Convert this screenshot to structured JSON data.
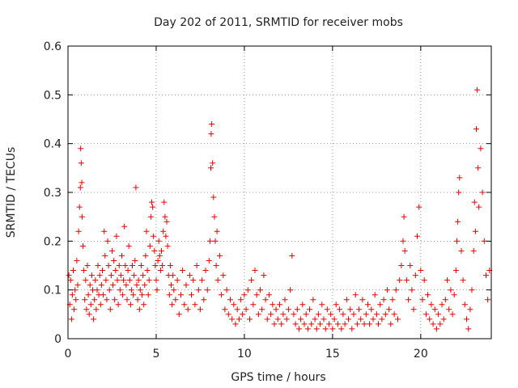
{
  "colors": {
    "series": "#ee0000",
    "frame": "#000000",
    "grid": "#9a9a9a"
  },
  "chart_data": {
    "type": "scatter",
    "title": "Day 202 of 2011, SRMTID for receiver mobs",
    "xlabel": "GPS time / hours",
    "ylabel": "SRMTID / TECUs",
    "xlim": [
      0,
      24
    ],
    "ylim": [
      0,
      0.6
    ],
    "xticks": [
      0,
      5,
      10,
      15,
      20
    ],
    "xtick_labels": [
      "0",
      "5",
      "10",
      "15",
      "20"
    ],
    "yticks": [
      0,
      0.1,
      0.2,
      0.3,
      0.4,
      0.5,
      0.6
    ],
    "ytick_labels": [
      "0",
      "0.1",
      "0.2",
      "0.3",
      "0.4",
      "0.5",
      "0.6"
    ],
    "grid": true,
    "marker": "plus",
    "series": [
      {
        "name": "SRMTID",
        "points": [
          [
            0.05,
            0.13
          ],
          [
            0.1,
            0.07
          ],
          [
            0.15,
            0.12
          ],
          [
            0.2,
            0.04
          ],
          [
            0.25,
            0.09
          ],
          [
            0.3,
            0.14
          ],
          [
            0.35,
            0.06
          ],
          [
            0.4,
            0.1
          ],
          [
            0.45,
            0.08
          ],
          [
            0.5,
            0.16
          ],
          [
            0.55,
            0.11
          ],
          [
            0.6,
            0.22
          ],
          [
            0.65,
            0.27
          ],
          [
            0.7,
            0.31
          ],
          [
            0.72,
            0.39
          ],
          [
            0.75,
            0.36
          ],
          [
            0.78,
            0.32
          ],
          [
            0.8,
            0.25
          ],
          [
            0.85,
            0.19
          ],
          [
            0.9,
            0.14
          ],
          [
            0.95,
            0.08
          ],
          [
            1.0,
            0.12
          ],
          [
            1.05,
            0.06
          ],
          [
            1.1,
            0.15
          ],
          [
            1.15,
            0.09
          ],
          [
            1.2,
            0.05
          ],
          [
            1.25,
            0.11
          ],
          [
            1.3,
            0.07
          ],
          [
            1.35,
            0.13
          ],
          [
            1.4,
            0.1
          ],
          [
            1.45,
            0.04
          ],
          [
            1.5,
            0.08
          ],
          [
            1.55,
            0.12
          ],
          [
            1.6,
            0.06
          ],
          [
            1.65,
            0.1
          ],
          [
            1.7,
            0.15
          ],
          [
            1.75,
            0.09
          ],
          [
            1.8,
            0.13
          ],
          [
            1.85,
            0.07
          ],
          [
            1.9,
            0.11
          ],
          [
            1.95,
            0.14
          ],
          [
            2.0,
            0.09
          ],
          [
            2.05,
            0.22
          ],
          [
            2.1,
            0.17
          ],
          [
            2.15,
            0.12
          ],
          [
            2.2,
            0.08
          ],
          [
            2.25,
            0.2
          ],
          [
            2.3,
            0.15
          ],
          [
            2.35,
            0.1
          ],
          [
            2.4,
            0.06
          ],
          [
            2.45,
            0.13
          ],
          [
            2.5,
            0.18
          ],
          [
            2.55,
            0.11
          ],
          [
            2.6,
            0.16
          ],
          [
            2.65,
            0.08
          ],
          [
            2.7,
            0.14
          ],
          [
            2.75,
            0.21
          ],
          [
            2.8,
            0.12
          ],
          [
            2.85,
            0.07
          ],
          [
            2.9,
            0.15
          ],
          [
            2.95,
            0.1
          ],
          [
            3.0,
            0.13
          ],
          [
            3.05,
            0.17
          ],
          [
            3.1,
            0.09
          ],
          [
            3.15,
            0.12
          ],
          [
            3.2,
            0.23
          ],
          [
            3.25,
            0.15
          ],
          [
            3.3,
            0.11
          ],
          [
            3.35,
            0.08
          ],
          [
            3.4,
            0.14
          ],
          [
            3.45,
            0.19
          ],
          [
            3.5,
            0.12
          ],
          [
            3.55,
            0.07
          ],
          [
            3.6,
            0.1
          ],
          [
            3.65,
            0.15
          ],
          [
            3.7,
            0.09
          ],
          [
            3.75,
            0.13
          ],
          [
            3.8,
            0.16
          ],
          [
            3.85,
            0.31
          ],
          [
            3.9,
            0.11
          ],
          [
            3.95,
            0.08
          ],
          [
            4.0,
            0.12
          ],
          [
            4.05,
            0.06
          ],
          [
            4.1,
            0.1
          ],
          [
            4.15,
            0.15
          ],
          [
            4.2,
            0.09
          ],
          [
            4.25,
            0.13
          ],
          [
            4.3,
            0.07
          ],
          [
            4.35,
            0.11
          ],
          [
            4.4,
            0.17
          ],
          [
            4.45,
            0.22
          ],
          [
            4.5,
            0.14
          ],
          [
            4.55,
            0.09
          ],
          [
            4.6,
            0.12
          ],
          [
            4.65,
            0.19
          ],
          [
            4.7,
            0.25
          ],
          [
            4.75,
            0.28
          ],
          [
            4.8,
            0.27
          ],
          [
            4.85,
            0.21
          ],
          [
            4.9,
            0.18
          ],
          [
            4.95,
            0.15
          ],
          [
            5.0,
            0.12
          ],
          [
            5.05,
            0.1
          ],
          [
            5.1,
            0.16
          ],
          [
            5.15,
            0.2
          ],
          [
            5.2,
            0.17
          ],
          [
            5.25,
            0.14
          ],
          [
            5.3,
            0.18
          ],
          [
            5.35,
            0.15
          ],
          [
            5.4,
            0.22
          ],
          [
            5.45,
            0.28
          ],
          [
            5.5,
            0.25
          ],
          [
            5.55,
            0.21
          ],
          [
            5.6,
            0.24
          ],
          [
            5.65,
            0.19
          ],
          [
            5.7,
            0.13
          ],
          [
            5.75,
            0.09
          ],
          [
            5.8,
            0.15
          ],
          [
            5.85,
            0.11
          ],
          [
            5.9,
            0.07
          ],
          [
            5.95,
            0.13
          ],
          [
            6.0,
            0.1
          ],
          [
            6.1,
            0.08
          ],
          [
            6.2,
            0.12
          ],
          [
            6.3,
            0.05
          ],
          [
            6.4,
            0.09
          ],
          [
            6.5,
            0.14
          ],
          [
            6.6,
            0.07
          ],
          [
            6.7,
            0.11
          ],
          [
            6.8,
            0.06
          ],
          [
            6.9,
            0.13
          ],
          [
            7.0,
            0.09
          ],
          [
            7.1,
            0.12
          ],
          [
            7.2,
            0.07
          ],
          [
            7.3,
            0.15
          ],
          [
            7.4,
            0.1
          ],
          [
            7.5,
            0.06
          ],
          [
            7.6,
            0.12
          ],
          [
            7.7,
            0.08
          ],
          [
            7.8,
            0.14
          ],
          [
            7.9,
            0.1
          ],
          [
            8.0,
            0.16
          ],
          [
            8.05,
            0.2
          ],
          [
            8.1,
            0.35
          ],
          [
            8.12,
            0.42
          ],
          [
            8.15,
            0.44
          ],
          [
            8.2,
            0.36
          ],
          [
            8.25,
            0.29
          ],
          [
            8.3,
            0.25
          ],
          [
            8.35,
            0.2
          ],
          [
            8.4,
            0.15
          ],
          [
            8.45,
            0.22
          ],
          [
            8.5,
            0.12
          ],
          [
            8.6,
            0.17
          ],
          [
            8.7,
            0.09
          ],
          [
            8.8,
            0.13
          ],
          [
            8.9,
            0.06
          ],
          [
            9.0,
            0.1
          ],
          [
            9.1,
            0.05
          ],
          [
            9.2,
            0.08
          ],
          [
            9.3,
            0.04
          ],
          [
            9.4,
            0.07
          ],
          [
            9.5,
            0.03
          ],
          [
            9.6,
            0.06
          ],
          [
            9.7,
            0.04
          ],
          [
            9.8,
            0.08
          ],
          [
            9.9,
            0.05
          ],
          [
            10.0,
            0.09
          ],
          [
            10.1,
            0.06
          ],
          [
            10.2,
            0.1
          ],
          [
            10.3,
            0.04
          ],
          [
            10.4,
            0.12
          ],
          [
            10.5,
            0.07
          ],
          [
            10.6,
            0.14
          ],
          [
            10.7,
            0.09
          ],
          [
            10.8,
            0.05
          ],
          [
            10.9,
            0.1
          ],
          [
            11.0,
            0.06
          ],
          [
            11.1,
            0.13
          ],
          [
            11.2,
            0.08
          ],
          [
            11.3,
            0.04
          ],
          [
            11.4,
            0.09
          ],
          [
            11.5,
            0.05
          ],
          [
            11.6,
            0.07
          ],
          [
            11.7,
            0.03
          ],
          [
            11.8,
            0.06
          ],
          [
            11.9,
            0.04
          ],
          [
            12.0,
            0.07
          ],
          [
            12.1,
            0.03
          ],
          [
            12.2,
            0.05
          ],
          [
            12.3,
            0.08
          ],
          [
            12.4,
            0.04
          ],
          [
            12.5,
            0.06
          ],
          [
            12.6,
            0.1
          ],
          [
            12.7,
            0.17
          ],
          [
            12.8,
            0.05
          ],
          [
            12.9,
            0.03
          ],
          [
            13.0,
            0.06
          ],
          [
            13.1,
            0.02
          ],
          [
            13.2,
            0.04
          ],
          [
            13.3,
            0.07
          ],
          [
            13.4,
            0.03
          ],
          [
            13.5,
            0.05
          ],
          [
            13.6,
            0.02
          ],
          [
            13.7,
            0.06
          ],
          [
            13.8,
            0.03
          ],
          [
            13.9,
            0.08
          ],
          [
            14.0,
            0.04
          ],
          [
            14.1,
            0.02
          ],
          [
            14.2,
            0.05
          ],
          [
            14.3,
            0.03
          ],
          [
            14.4,
            0.07
          ],
          [
            14.5,
            0.04
          ],
          [
            14.6,
            0.02
          ],
          [
            14.7,
            0.06
          ],
          [
            14.8,
            0.03
          ],
          [
            14.9,
            0.05
          ],
          [
            15.0,
            0.02
          ],
          [
            15.1,
            0.04
          ],
          [
            15.2,
            0.07
          ],
          [
            15.3,
            0.03
          ],
          [
            15.4,
            0.06
          ],
          [
            15.5,
            0.02
          ],
          [
            15.6,
            0.05
          ],
          [
            15.7,
            0.03
          ],
          [
            15.8,
            0.08
          ],
          [
            15.9,
            0.04
          ],
          [
            16.0,
            0.06
          ],
          [
            16.1,
            0.02
          ],
          [
            16.2,
            0.05
          ],
          [
            16.3,
            0.09
          ],
          [
            16.4,
            0.03
          ],
          [
            16.5,
            0.06
          ],
          [
            16.6,
            0.04
          ],
          [
            16.7,
            0.08
          ],
          [
            16.8,
            0.03
          ],
          [
            16.9,
            0.05
          ],
          [
            17.0,
            0.07
          ],
          [
            17.1,
            0.03
          ],
          [
            17.2,
            0.06
          ],
          [
            17.3,
            0.04
          ],
          [
            17.4,
            0.09
          ],
          [
            17.5,
            0.05
          ],
          [
            17.6,
            0.03
          ],
          [
            17.7,
            0.07
          ],
          [
            17.8,
            0.04
          ],
          [
            17.9,
            0.08
          ],
          [
            18.0,
            0.05
          ],
          [
            18.1,
            0.1
          ],
          [
            18.2,
            0.06
          ],
          [
            18.3,
            0.03
          ],
          [
            18.4,
            0.08
          ],
          [
            18.5,
            0.05
          ],
          [
            18.6,
            0.1
          ],
          [
            18.7,
            0.04
          ],
          [
            18.8,
            0.12
          ],
          [
            18.9,
            0.15
          ],
          [
            19.0,
            0.2
          ],
          [
            19.05,
            0.25
          ],
          [
            19.1,
            0.18
          ],
          [
            19.2,
            0.12
          ],
          [
            19.3,
            0.08
          ],
          [
            19.4,
            0.15
          ],
          [
            19.5,
            0.1
          ],
          [
            19.6,
            0.06
          ],
          [
            19.7,
            0.13
          ],
          [
            19.8,
            0.21
          ],
          [
            19.9,
            0.27
          ],
          [
            20.0,
            0.14
          ],
          [
            20.1,
            0.08
          ],
          [
            20.2,
            0.12
          ],
          [
            20.3,
            0.05
          ],
          [
            20.4,
            0.09
          ],
          [
            20.5,
            0.04
          ],
          [
            20.6,
            0.07
          ],
          [
            20.7,
            0.03
          ],
          [
            20.8,
            0.06
          ],
          [
            20.9,
            0.02
          ],
          [
            21.0,
            0.05
          ],
          [
            21.1,
            0.03
          ],
          [
            21.2,
            0.07
          ],
          [
            21.3,
            0.04
          ],
          [
            21.4,
            0.08
          ],
          [
            21.5,
            0.12
          ],
          [
            21.6,
            0.06
          ],
          [
            21.7,
            0.1
          ],
          [
            21.8,
            0.05
          ],
          [
            21.9,
            0.09
          ],
          [
            22.0,
            0.14
          ],
          [
            22.05,
            0.2
          ],
          [
            22.1,
            0.24
          ],
          [
            22.15,
            0.3
          ],
          [
            22.2,
            0.33
          ],
          [
            22.3,
            0.18
          ],
          [
            22.4,
            0.12
          ],
          [
            22.5,
            0.07
          ],
          [
            22.6,
            0.04
          ],
          [
            22.7,
            0.02
          ],
          [
            22.8,
            0.06
          ],
          [
            22.9,
            0.1
          ],
          [
            23.0,
            0.18
          ],
          [
            23.05,
            0.28
          ],
          [
            23.1,
            0.22
          ],
          [
            23.15,
            0.43
          ],
          [
            23.2,
            0.51
          ],
          [
            23.25,
            0.35
          ],
          [
            23.3,
            0.27
          ],
          [
            23.4,
            0.39
          ],
          [
            23.5,
            0.3
          ],
          [
            23.6,
            0.2
          ],
          [
            23.7,
            0.13
          ],
          [
            23.8,
            0.08
          ],
          [
            23.9,
            0.14
          ]
        ]
      }
    ]
  }
}
